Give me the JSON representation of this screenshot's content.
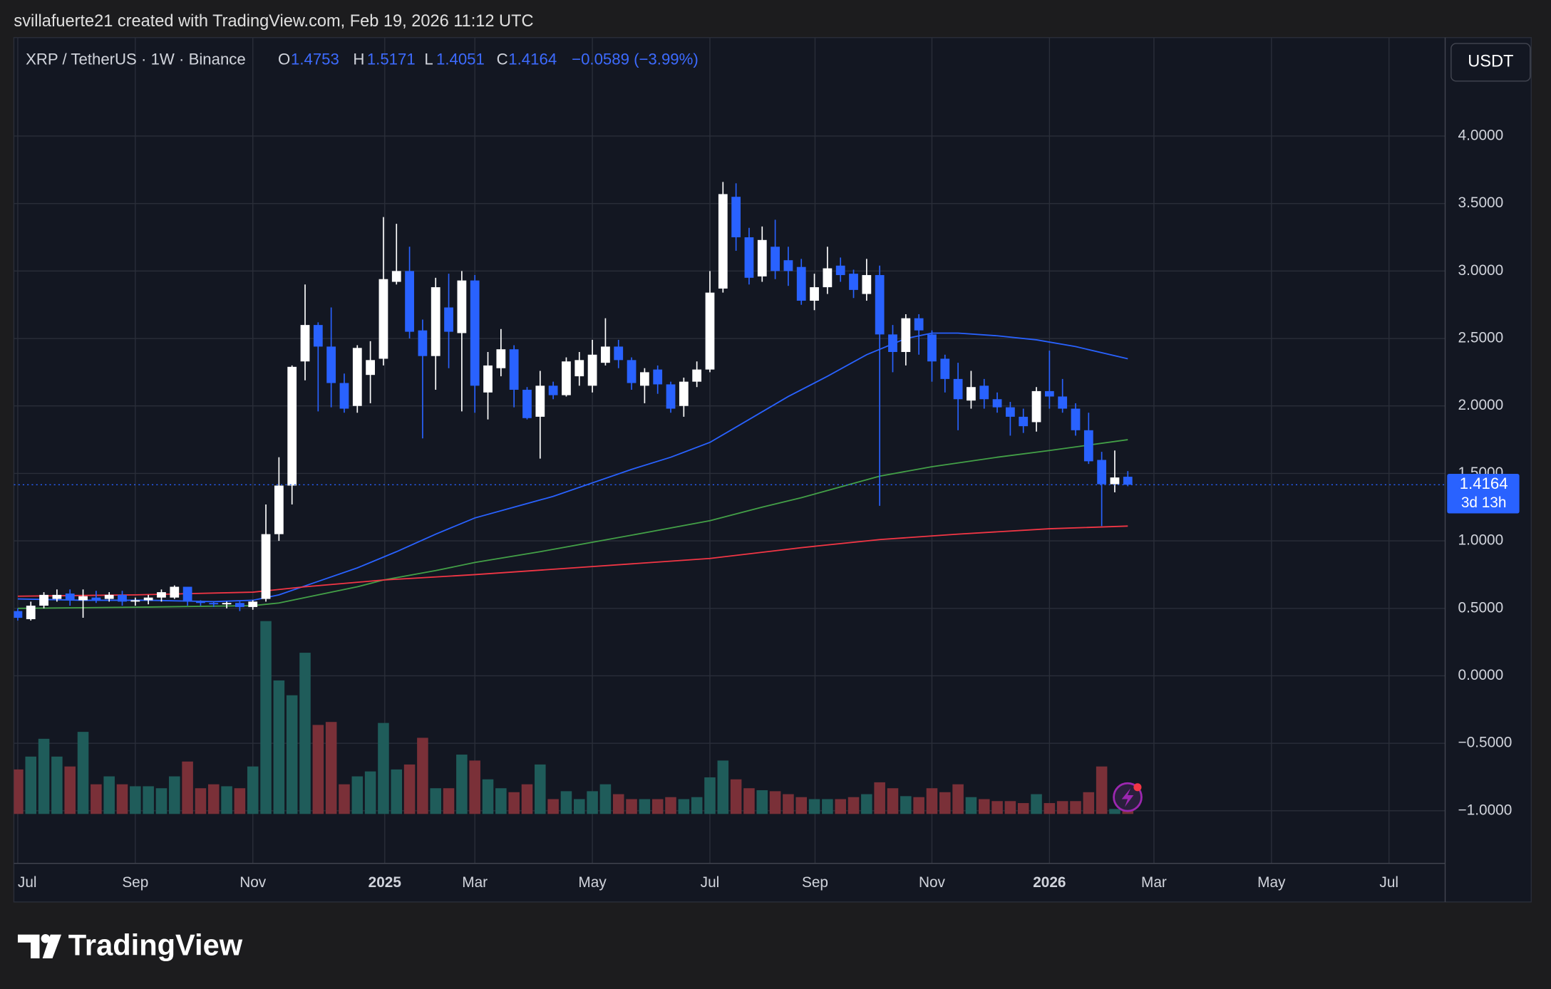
{
  "chart_data": {
    "type": "candlestick",
    "attribution": "svillafuerte21 created with TradingView.com, Feb 19, 2026 11:12 UTC",
    "symbol": "XRP / TetherUS · 1W · Binance",
    "ohlc_labels": [
      "O",
      "H",
      "L",
      "C"
    ],
    "change": "−0.0589 (−3.99%)",
    "currency": "USDT",
    "countdown": "3d 13h",
    "brand": "TradingView",
    "up_color": "#ffffff",
    "down_color": "#2962ff",
    "volume_up_color": "#1f5c5a",
    "volume_down_color": "#7a3038",
    "grid": true,
    "xlim": [
      -0.3,
      109.3
    ],
    "ylim": [
      -1.39,
      4.73
    ],
    "xticks": [
      {
        "value": 0,
        "label": "Jul"
      },
      {
        "value": 9,
        "label": "Sep"
      },
      {
        "value": 18,
        "label": "Nov"
      },
      {
        "value": 28.1,
        "label": "2025"
      },
      {
        "value": 35,
        "label": "Mar"
      },
      {
        "value": 44,
        "label": "May"
      },
      {
        "value": 53,
        "label": "Jul"
      },
      {
        "value": 61.05,
        "label": "Sep"
      },
      {
        "value": 70,
        "label": "Nov"
      },
      {
        "value": 79,
        "label": "2026"
      },
      {
        "value": 87,
        "label": "Mar"
      },
      {
        "value": 96,
        "label": "May"
      },
      {
        "value": 105,
        "label": "Jul"
      }
    ],
    "yticks": [
      {
        "value": 4,
        "label": "4.0000"
      },
      {
        "value": 3.5,
        "label": "3.5000"
      },
      {
        "value": 3,
        "label": "3.0000"
      },
      {
        "value": 2.5,
        "label": "2.5000"
      },
      {
        "value": 2,
        "label": "2.0000"
      },
      {
        "value": 1.5,
        "label": "1.5000"
      },
      {
        "value": 1,
        "label": "1.0000"
      },
      {
        "value": 0.5,
        "label": "0.5000"
      },
      {
        "value": 0,
        "label": "0.0000"
      },
      {
        "value": -0.5,
        "label": "−0.5000"
      },
      {
        "value": -1,
        "label": "−1.0000"
      }
    ],
    "open": [
      0.48,
      0.42,
      0.52,
      0.57,
      0.61,
      0.56,
      0.58,
      0.57,
      0.6,
      0.55,
      0.56,
      0.58,
      0.58,
      0.66,
      0.55,
      0.54,
      0.53,
      0.54,
      0.51,
      0.57,
      1.05,
      1.41,
      2.33,
      2.6,
      2.44,
      2.17,
      2.0,
      2.23,
      2.35,
      2.92,
      3.0,
      2.56,
      2.37,
      2.73,
      2.54,
      2.93,
      2.1,
      2.28,
      2.42,
      2.12,
      1.92,
      2.15,
      2.08,
      2.22,
      2.15,
      2.32,
      2.44,
      2.34,
      2.15,
      2.27,
      2.16,
      2.0,
      2.18,
      2.27,
      2.87,
      3.55,
      3.25,
      2.96,
      3.18,
      3.08,
      3.03,
      2.78,
      2.88,
      3.04,
      2.98,
      2.83,
      2.97,
      2.53,
      2.4,
      2.65,
      2.53,
      2.35,
      2.2,
      2.04,
      2.15,
      2.05,
      1.99,
      1.92,
      1.88,
      2.11,
      2.07,
      1.98,
      1.82,
      1.6,
      1.42,
      1.4753
    ],
    "high": [
      0.5,
      0.55,
      0.62,
      0.64,
      0.64,
      0.64,
      0.63,
      0.62,
      0.63,
      0.58,
      0.6,
      0.64,
      0.67,
      0.66,
      0.56,
      0.55,
      0.55,
      0.56,
      0.56,
      1.27,
      1.62,
      2.3,
      2.9,
      2.62,
      2.73,
      2.24,
      2.45,
      2.48,
      3.4,
      3.35,
      3.18,
      2.64,
      2.95,
      2.98,
      3.0,
      2.97,
      2.4,
      2.57,
      2.45,
      2.14,
      2.26,
      2.18,
      2.36,
      2.4,
      2.49,
      2.65,
      2.49,
      2.36,
      2.28,
      2.3,
      2.18,
      2.21,
      2.33,
      3.0,
      3.66,
      3.65,
      3.32,
      3.33,
      3.38,
      3.18,
      3.09,
      2.98,
      3.18,
      3.1,
      3.01,
      3.09,
      3.04,
      2.6,
      2.68,
      2.68,
      2.56,
      2.38,
      2.32,
      2.26,
      2.2,
      2.1,
      2.03,
      1.98,
      2.14,
      2.41,
      2.2,
      2.02,
      1.95,
      1.66,
      1.67,
      1.5171
    ],
    "low": [
      0.41,
      0.41,
      0.5,
      0.55,
      0.52,
      0.43,
      0.54,
      0.55,
      0.52,
      0.52,
      0.53,
      0.55,
      0.57,
      0.52,
      0.52,
      0.51,
      0.5,
      0.48,
      0.49,
      0.55,
      1.0,
      1.27,
      2.19,
      1.96,
      1.99,
      1.95,
      1.95,
      2.02,
      2.3,
      2.9,
      2.5,
      1.76,
      2.12,
      2.28,
      1.96,
      1.95,
      1.9,
      2.22,
      1.99,
      1.9,
      1.61,
      2.05,
      2.07,
      2.15,
      2.1,
      2.3,
      2.28,
      2.12,
      2.02,
      2.09,
      1.95,
      1.92,
      2.14,
      2.25,
      2.84,
      3.15,
      2.9,
      2.92,
      2.94,
      2.89,
      2.75,
      2.71,
      2.83,
      2.92,
      2.8,
      2.78,
      1.26,
      2.25,
      2.3,
      2.38,
      2.18,
      2.1,
      1.82,
      1.98,
      1.98,
      1.95,
      1.78,
      1.8,
      1.81,
      1.98,
      1.95,
      1.78,
      1.57,
      1.11,
      1.36,
      1.4051
    ],
    "close": [
      0.43,
      0.52,
      0.6,
      0.6,
      0.56,
      0.59,
      0.56,
      0.6,
      0.55,
      0.56,
      0.58,
      0.62,
      0.66,
      0.55,
      0.54,
      0.53,
      0.54,
      0.51,
      0.55,
      1.05,
      1.41,
      2.29,
      2.6,
      2.44,
      2.17,
      1.98,
      2.43,
      2.34,
      2.94,
      3.0,
      2.55,
      2.37,
      2.88,
      2.55,
      2.93,
      2.15,
      2.3,
      2.42,
      2.12,
      1.91,
      2.15,
      2.08,
      2.33,
      2.34,
      2.38,
      2.44,
      2.34,
      2.17,
      2.25,
      2.16,
      1.98,
      2.18,
      2.27,
      2.84,
      3.57,
      3.25,
      2.95,
      3.23,
      3.0,
      3.0,
      2.78,
      2.88,
      3.02,
      2.97,
      2.86,
      2.97,
      2.53,
      2.4,
      2.65,
      2.56,
      2.33,
      2.2,
      2.05,
      2.14,
      2.05,
      1.99,
      1.92,
      1.85,
      2.11,
      2.07,
      1.98,
      1.82,
      1.59,
      1.42,
      1.47,
      1.4164
    ],
    "volume": [
      45,
      58,
      76,
      58,
      48,
      83,
      30,
      38,
      30,
      28,
      28,
      26,
      38,
      53,
      26,
      30,
      28,
      26,
      48,
      195,
      135,
      120,
      163,
      90,
      93,
      30,
      38,
      43,
      92,
      45,
      50,
      77,
      26,
      26,
      60,
      54,
      35,
      26,
      22,
      30,
      50,
      15,
      23,
      15,
      23,
      30,
      20,
      15,
      15,
      15,
      17,
      15,
      17,
      37,
      54,
      35,
      26,
      24,
      23,
      20,
      17,
      15,
      15,
      15,
      17,
      20,
      32,
      26,
      18,
      17,
      26,
      22,
      30,
      17,
      15,
      13,
      13,
      11,
      20,
      11,
      13,
      13,
      22,
      48,
      5,
      3
    ],
    "moving_averages": [
      {
        "color": "#2962ff",
        "x": [
          0,
          5,
          10,
          15,
          18,
          20,
          23,
          26,
          29,
          32,
          35,
          38,
          41,
          44,
          47,
          50,
          53,
          56,
          59,
          62,
          65,
          68,
          70,
          72,
          75,
          78,
          81,
          85
        ],
        "values": [
          0.57,
          0.56,
          0.56,
          0.55,
          0.56,
          0.6,
          0.7,
          0.8,
          0.92,
          1.05,
          1.17,
          1.25,
          1.33,
          1.43,
          1.53,
          1.62,
          1.73,
          1.9,
          2.07,
          2.22,
          2.38,
          2.5,
          2.54,
          2.54,
          2.52,
          2.49,
          2.44,
          2.35
        ]
      },
      {
        "color": "#43a047",
        "x": [
          0,
          10,
          18,
          20,
          23,
          26,
          28,
          32,
          35,
          40,
          44,
          48,
          53,
          57,
          60,
          63,
          66,
          70,
          75,
          79,
          82,
          85
        ],
        "values": [
          0.5,
          0.51,
          0.52,
          0.54,
          0.6,
          0.66,
          0.71,
          0.78,
          0.84,
          0.92,
          0.99,
          1.06,
          1.15,
          1.25,
          1.32,
          1.4,
          1.48,
          1.55,
          1.62,
          1.67,
          1.71,
          1.75
        ]
      },
      {
        "color": "#f23645",
        "x": [
          0,
          9,
          18,
          22,
          28,
          35,
          44,
          53,
          60,
          66,
          72,
          79,
          85
        ],
        "values": [
          0.59,
          0.6,
          0.62,
          0.66,
          0.71,
          0.75,
          0.81,
          0.87,
          0.95,
          1.01,
          1.05,
          1.09,
          1.11
        ]
      }
    ]
  }
}
